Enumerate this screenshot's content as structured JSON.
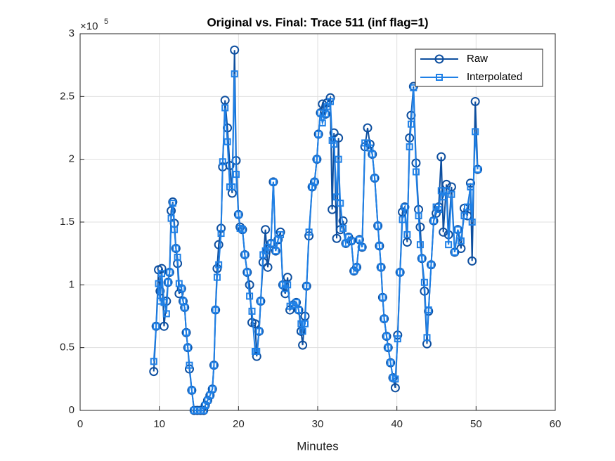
{
  "chart_data": {
    "type": "line",
    "title": "Original vs. Final: Trace 511 (inf flag=1)",
    "x_label": "Minutes",
    "y_exponent": {
      "base": "×10",
      "power": "5"
    },
    "xlim": [
      0,
      60
    ],
    "xticks": [
      0,
      10,
      20,
      30,
      40,
      50,
      60
    ],
    "ylim": [
      0,
      300000
    ],
    "yticks": [
      {
        "value": 0,
        "label": "0"
      },
      {
        "value": 50000,
        "label": "0.5"
      },
      {
        "value": 100000,
        "label": "1"
      },
      {
        "value": 150000,
        "label": "1.5"
      },
      {
        "value": 200000,
        "label": "2"
      },
      {
        "value": 250000,
        "label": "2.5"
      },
      {
        "value": 300000,
        "label": "3"
      }
    ],
    "grid": true,
    "legend": "top-right",
    "x": [
      9.3,
      9.6,
      9.9,
      10.1,
      10.3,
      10.6,
      10.9,
      11.1,
      11.3,
      11.5,
      11.7,
      11.9,
      12.1,
      12.3,
      12.5,
      12.8,
      13.0,
      13.2,
      13.4,
      13.6,
      13.8,
      14.1,
      14.4,
      14.8,
      15.2,
      15.6,
      15.8,
      16.1,
      16.4,
      16.7,
      16.9,
      17.1,
      17.3,
      17.5,
      17.8,
      18.0,
      18.3,
      18.6,
      18.9,
      19.2,
      19.5,
      19.7,
      20.0,
      20.2,
      20.5,
      20.8,
      21.1,
      21.4,
      21.7,
      22.1,
      22.3,
      22.6,
      22.8,
      23.1,
      23.4,
      23.7,
      24.1,
      24.4,
      24.7,
      25.0,
      25.3,
      25.6,
      25.9,
      26.2,
      26.5,
      26.9,
      27.3,
      27.6,
      27.9,
      28.1,
      28.4,
      28.6,
      28.9,
      29.3,
      29.6,
      29.9,
      30.1,
      30.35,
      30.6,
      31.0,
      31.2,
      31.6,
      31.83,
      32.06,
      32.4,
      32.63,
      32.86,
      33.2,
      33.55,
      33.9,
      34.24,
      34.58,
      34.93,
      35.27,
      35.61,
      35.96,
      36.3,
      36.6,
      36.9,
      37.2,
      37.6,
      37.8,
      38.0,
      38.2,
      38.4,
      38.7,
      38.9,
      39.2,
      39.5,
      39.8,
      40.1,
      40.4,
      40.7,
      41.0,
      41.3,
      41.6,
      41.8,
      42.1,
      42.42,
      42.74,
      42.95,
      43.16,
      43.48,
      43.8,
      44.0,
      44.33,
      44.65,
      44.96,
      45.28,
      45.6,
      45.86,
      46.26,
      46.52,
      46.9,
      47.3,
      47.7,
      48.1,
      48.5,
      48.9,
      49.3,
      49.5,
      49.9,
      50.2
    ],
    "series": [
      {
        "name": "Raw",
        "color": "#0e4f9f",
        "marker": "circle",
        "values": [
          31000,
          67000,
          112000,
          95000,
          113000,
          67000,
          87000,
          102000,
          110000,
          159000,
          166000,
          149000,
          129000,
          117000,
          93000,
          97000,
          87000,
          82000,
          62000,
          50000,
          33000,
          16000,
          0,
          0,
          0,
          0,
          4000,
          8000,
          12000,
          17000,
          36000,
          80000,
          113000,
          132000,
          145000,
          194000,
          247000,
          225000,
          195000,
          173000,
          287000,
          199000,
          156000,
          146000,
          144000,
          124000,
          110000,
          100000,
          70000,
          69000,
          43000,
          63000,
          87000,
          118000,
          144000,
          114000,
          133000,
          182000,
          127000,
          136000,
          142000,
          100000,
          93000,
          106000,
          80000,
          84000,
          86000,
          80000,
          63000,
          52000,
          75000,
          99000,
          139000,
          178000,
          182000,
          200000,
          220000,
          237000,
          244000,
          236000,
          245000,
          249000,
          160000,
          221000,
          137000,
          217000,
          144000,
          151000,
          133000,
          138000,
          135000,
          111000,
          114000,
          136000,
          130000,
          210000,
          225000,
          212000,
          204000,
          185000,
          147000,
          131000,
          114000,
          90000,
          73000,
          59000,
          50000,
          38000,
          26000,
          18000,
          60000,
          110000,
          158000,
          162000,
          134000,
          217000,
          235000,
          258000,
          197000,
          160000,
          146000,
          121000,
          95000,
          53000,
          79000,
          116000,
          151000,
          157000,
          162000,
          202000,
          142000,
          180000,
          140000,
          178000,
          126000,
          144000,
          129000,
          161000,
          155000,
          181000,
          119000,
          246000,
          192000
        ]
      },
      {
        "name": "Interpolated",
        "color": "#1f80e6",
        "marker": "square",
        "values": [
          39000,
          67000,
          101000,
          87000,
          109000,
          86000,
          77000,
          102000,
          110000,
          153000,
          165000,
          144000,
          129000,
          122000,
          101000,
          97000,
          87000,
          82000,
          62000,
          50000,
          36000,
          16000,
          0,
          0,
          0,
          0,
          4000,
          8000,
          12000,
          17000,
          36000,
          80000,
          106000,
          116000,
          141000,
          198000,
          241000,
          214000,
          178000,
          178000,
          268000,
          188000,
          156000,
          145000,
          144000,
          124000,
          110000,
          91000,
          79000,
          47000,
          47000,
          63000,
          87000,
          124000,
          127000,
          130000,
          133000,
          182000,
          127000,
          136000,
          140000,
          100000,
          97000,
          100000,
          83000,
          84000,
          86000,
          80000,
          69000,
          63000,
          69000,
          99000,
          142000,
          178000,
          182000,
          200000,
          220000,
          237000,
          229000,
          236000,
          242000,
          246000,
          215000,
          212000,
          170000,
          200000,
          165000,
          145000,
          133000,
          138000,
          135000,
          111000,
          114000,
          136000,
          130000,
          213000,
          213000,
          209000,
          204000,
          185000,
          147000,
          131000,
          114000,
          90000,
          73000,
          59000,
          50000,
          38000,
          26000,
          25000,
          57000,
          110000,
          152000,
          162000,
          140000,
          210000,
          228000,
          257000,
          190000,
          155000,
          132000,
          121000,
          102000,
          58000,
          80000,
          116000,
          151000,
          162000,
          160000,
          175000,
          170000,
          175000,
          132000,
          172000,
          126000,
          144000,
          135000,
          155000,
          162000,
          178000,
          150000,
          222000,
          192000
        ]
      }
    ]
  }
}
